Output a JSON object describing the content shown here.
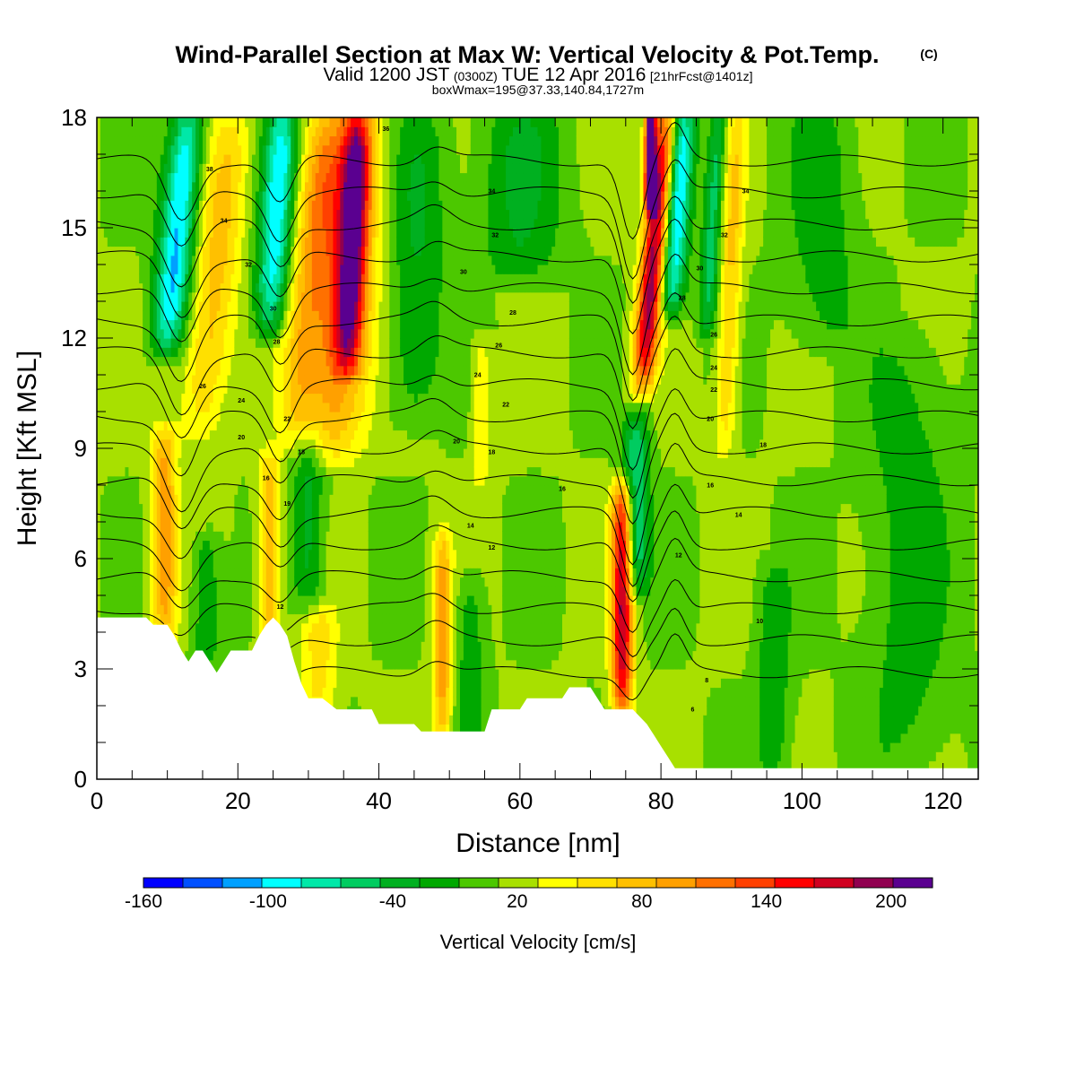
{
  "chart_data": {
    "type": "heatmap",
    "title": "Wind-Parallel Section at Max W: Vertical Velocity & Pot.Temp.",
    "title_mark": "(C)",
    "subtitle_parts": [
      "Valid 1200 JST",
      "(0300Z)",
      "TUE 12 Apr 2016",
      "[21hrFcst@1401z]"
    ],
    "subtitle2": "boxWmax=195@37.33,140.84,1727m",
    "xlabel": "Distance [nm]",
    "ylabel": "Height [Kft MSL]",
    "xlim": [
      0,
      125
    ],
    "ylim": [
      0,
      18
    ],
    "x_ticks": [
      "0",
      "20",
      "40",
      "60",
      "80",
      "100",
      "120"
    ],
    "y_ticks": [
      "0",
      "3",
      "6",
      "9",
      "12",
      "15",
      "18"
    ],
    "x_tick_values": [
      0,
      20,
      40,
      60,
      80,
      100,
      120
    ],
    "y_tick_values": [
      0,
      3,
      6,
      9,
      12,
      15,
      18
    ],
    "colorbar": {
      "label": "Vertical Velocity [cm/s]",
      "range": [
        -160,
        220
      ],
      "tick_labels": [
        "-160",
        "-100",
        "-40",
        "20",
        "80",
        "140",
        "200"
      ],
      "tick_values": [
        -160,
        -100,
        -40,
        20,
        80,
        140,
        200
      ],
      "colors": [
        "#0000ff",
        "#0050ff",
        "#00a0ff",
        "#00ffff",
        "#00e8a8",
        "#00cc60",
        "#00b020",
        "#00a800",
        "#4cc800",
        "#a8e000",
        "#ffff00",
        "#ffe000",
        "#ffc000",
        "#ffa000",
        "#ff7000",
        "#ff4000",
        "#ff0000",
        "#d00020",
        "#900050",
        "#5a0090"
      ]
    },
    "terrain_kft": [
      [
        0,
        4.4
      ],
      [
        3,
        4.4
      ],
      [
        7,
        4.4
      ],
      [
        8,
        4.2
      ],
      [
        10,
        4.2
      ],
      [
        11,
        3.9
      ],
      [
        12,
        3.5
      ],
      [
        13,
        3.2
      ],
      [
        14,
        3.5
      ],
      [
        15,
        3.5
      ],
      [
        16,
        3.2
      ],
      [
        17,
        2.9
      ],
      [
        18,
        3.2
      ],
      [
        19,
        3.5
      ],
      [
        22,
        3.5
      ],
      [
        23,
        3.9
      ],
      [
        24,
        4.2
      ],
      [
        25,
        4.4
      ],
      [
        26,
        4.2
      ],
      [
        27,
        3.9
      ],
      [
        28,
        3.2
      ],
      [
        29,
        2.6
      ],
      [
        30,
        2.2
      ],
      [
        32,
        2.2
      ],
      [
        34,
        1.9
      ],
      [
        39,
        1.9
      ],
      [
        40,
        1.5
      ],
      [
        45,
        1.5
      ],
      [
        46,
        1.3
      ],
      [
        55,
        1.3
      ],
      [
        56,
        1.9
      ],
      [
        60,
        1.9
      ],
      [
        61,
        2.2
      ],
      [
        62,
        2.2
      ],
      [
        66,
        2.2
      ],
      [
        67,
        2.5
      ],
      [
        70,
        2.5
      ],
      [
        71,
        2.2
      ],
      [
        72,
        1.9
      ],
      [
        76,
        1.9
      ],
      [
        78,
        1.5
      ],
      [
        79,
        1.2
      ],
      [
        80,
        0.9
      ],
      [
        81,
        0.6
      ],
      [
        82,
        0.3
      ],
      [
        125,
        0.3
      ]
    ],
    "updrafts": [
      {
        "x": 9.5,
        "ybot": 4.2,
        "ytop": 9.2,
        "halfwidth": 1.8,
        "peak": 90,
        "tilt": 0
      },
      {
        "x": 14.5,
        "ybot": 9.5,
        "ytop": 18,
        "halfwidth": 3.2,
        "peak": 65,
        "tilt": 0.55
      },
      {
        "x": 24.5,
        "ybot": 3.7,
        "ytop": 8.5,
        "halfwidth": 1.6,
        "peak": 75,
        "tilt": 0
      },
      {
        "x": 28,
        "ybot": 9.5,
        "ytop": 18,
        "halfwidth": 2.8,
        "peak": 60,
        "tilt": 0.5
      },
      {
        "x": 33.5,
        "ybot": 9.0,
        "ytop": 18,
        "halfwidth": 4.5,
        "peak": 100,
        "tilt": 0.3
      },
      {
        "x": 35.5,
        "ybot": 11.5,
        "ytop": 18,
        "halfwidth": 2.0,
        "peak": 140,
        "tilt": 0.25
      },
      {
        "x": 31.5,
        "ybot": 2.2,
        "ytop": 4.2,
        "halfwidth": 2.5,
        "peak": 45,
        "tilt": 0
      },
      {
        "x": 49,
        "ybot": 1.4,
        "ytop": 6.3,
        "halfwidth": 1.3,
        "peak": 85,
        "tilt": 0
      },
      {
        "x": 74.5,
        "ybot": 2.1,
        "ytop": 7.7,
        "halfwidth": 1.5,
        "peak": 170,
        "tilt": 0
      },
      {
        "x": 77.5,
        "ybot": 11.0,
        "ytop": 18,
        "halfwidth": 1.7,
        "peak": 180,
        "tilt": 0.45
      },
      {
        "x": 78.5,
        "ybot": 16.0,
        "ytop": 18,
        "halfwidth": 0.8,
        "peak": 210,
        "tilt": 0
      },
      {
        "x": 89,
        "ybot": 9.0,
        "ytop": 18,
        "halfwidth": 1.5,
        "peak": 60,
        "tilt": 0.2
      },
      {
        "x": 54.5,
        "ybot": 8.5,
        "ytop": 11.5,
        "halfwidth": 1.3,
        "peak": 40,
        "tilt": 0
      }
    ],
    "downdrafts": [
      {
        "x": 10,
        "ybot": 12.0,
        "ytop": 18,
        "halfwidth": 2.5,
        "peak": -120,
        "tilt": 0.5
      },
      {
        "x": 24.5,
        "ybot": 12.5,
        "ytop": 18,
        "halfwidth": 2.3,
        "peak": -110,
        "tilt": 0.35
      },
      {
        "x": 30,
        "ybot": 5.0,
        "ytop": 9.0,
        "halfwidth": 2.2,
        "peak": -45,
        "tilt": 0
      },
      {
        "x": 15.5,
        "ybot": 3.5,
        "ytop": 6.2,
        "halfwidth": 2.0,
        "peak": -40,
        "tilt": 0
      },
      {
        "x": 44.5,
        "ybot": 10.0,
        "ytop": 18,
        "halfwidth": 4.0,
        "peak": -40,
        "tilt": 0.2
      },
      {
        "x": 53,
        "ybot": 1.5,
        "ytop": 5.2,
        "halfwidth": 2.0,
        "peak": -35,
        "tilt": 0
      },
      {
        "x": 60,
        "ybot": 14.0,
        "ytop": 18,
        "halfwidth": 6.0,
        "peak": -40,
        "tilt": 0
      },
      {
        "x": 76.5,
        "ybot": 5.5,
        "ytop": 9.5,
        "halfwidth": 1.8,
        "peak": -80,
        "tilt": 0
      },
      {
        "x": 81.5,
        "ybot": 13.0,
        "ytop": 18,
        "halfwidth": 1.8,
        "peak": -110,
        "tilt": 0.35
      },
      {
        "x": 86.5,
        "ybot": 12.5,
        "ytop": 18,
        "halfwidth": 1.3,
        "peak": -70,
        "tilt": 0.3
      },
      {
        "x": 103,
        "ybot": 12.0,
        "ytop": 18,
        "halfwidth": 5.0,
        "peak": -30,
        "tilt": 0
      },
      {
        "x": 115,
        "ybot": 0.3,
        "ytop": 12.0,
        "halfwidth": 6.0,
        "peak": -30,
        "tilt": 0
      },
      {
        "x": 96,
        "ybot": 0.3,
        "ytop": 5.5,
        "halfwidth": 2.5,
        "peak": -35,
        "tilt": 0
      }
    ],
    "theta_levels": [
      6,
      8,
      10,
      12,
      14,
      16,
      18,
      20,
      22,
      24,
      26,
      28,
      30,
      32,
      34,
      36,
      38
    ],
    "contour_labels": [
      {
        "x": 16,
        "y": 16.6,
        "text": "38"
      },
      {
        "x": 18,
        "y": 15.2,
        "text": "34"
      },
      {
        "x": 21.5,
        "y": 14.0,
        "text": "32"
      },
      {
        "x": 25,
        "y": 12.8,
        "text": "30"
      },
      {
        "x": 25.5,
        "y": 11.9,
        "text": "28"
      },
      {
        "x": 15,
        "y": 10.7,
        "text": "26"
      },
      {
        "x": 20.5,
        "y": 10.3,
        "text": "24"
      },
      {
        "x": 20.5,
        "y": 9.3,
        "text": "20"
      },
      {
        "x": 27,
        "y": 9.8,
        "text": "22"
      },
      {
        "x": 29,
        "y": 8.9,
        "text": "18"
      },
      {
        "x": 24,
        "y": 8.2,
        "text": "16"
      },
      {
        "x": 27,
        "y": 7.5,
        "text": "19"
      },
      {
        "x": 26,
        "y": 4.7,
        "text": "12"
      },
      {
        "x": 41,
        "y": 17.7,
        "text": "36"
      },
      {
        "x": 56,
        "y": 16.0,
        "text": "34"
      },
      {
        "x": 56.5,
        "y": 14.8,
        "text": "32"
      },
      {
        "x": 52,
        "y": 13.8,
        "text": "30"
      },
      {
        "x": 59,
        "y": 12.7,
        "text": "28"
      },
      {
        "x": 57,
        "y": 11.8,
        "text": "26"
      },
      {
        "x": 54,
        "y": 11.0,
        "text": "24"
      },
      {
        "x": 58,
        "y": 10.2,
        "text": "22"
      },
      {
        "x": 51,
        "y": 9.2,
        "text": "20"
      },
      {
        "x": 56,
        "y": 8.9,
        "text": "18"
      },
      {
        "x": 66,
        "y": 7.9,
        "text": "16"
      },
      {
        "x": 53,
        "y": 6.9,
        "text": "14"
      },
      {
        "x": 56,
        "y": 6.3,
        "text": "12"
      },
      {
        "x": 92,
        "y": 16.0,
        "text": "34"
      },
      {
        "x": 89,
        "y": 14.8,
        "text": "32"
      },
      {
        "x": 85.5,
        "y": 13.9,
        "text": "30"
      },
      {
        "x": 83,
        "y": 13.1,
        "text": "28"
      },
      {
        "x": 87.5,
        "y": 12.1,
        "text": "26"
      },
      {
        "x": 87.5,
        "y": 11.2,
        "text": "24"
      },
      {
        "x": 87.5,
        "y": 10.6,
        "text": "22"
      },
      {
        "x": 87,
        "y": 9.8,
        "text": "20"
      },
      {
        "x": 94.5,
        "y": 9.1,
        "text": "18"
      },
      {
        "x": 87,
        "y": 8.0,
        "text": "16"
      },
      {
        "x": 91,
        "y": 7.2,
        "text": "14"
      },
      {
        "x": 82.5,
        "y": 6.1,
        "text": "12"
      },
      {
        "x": 94,
        "y": 4.3,
        "text": "10"
      },
      {
        "x": 86.5,
        "y": 2.7,
        "text": "8"
      },
      {
        "x": 84.5,
        "y": 1.9,
        "text": "6"
      }
    ],
    "grid": false
  }
}
